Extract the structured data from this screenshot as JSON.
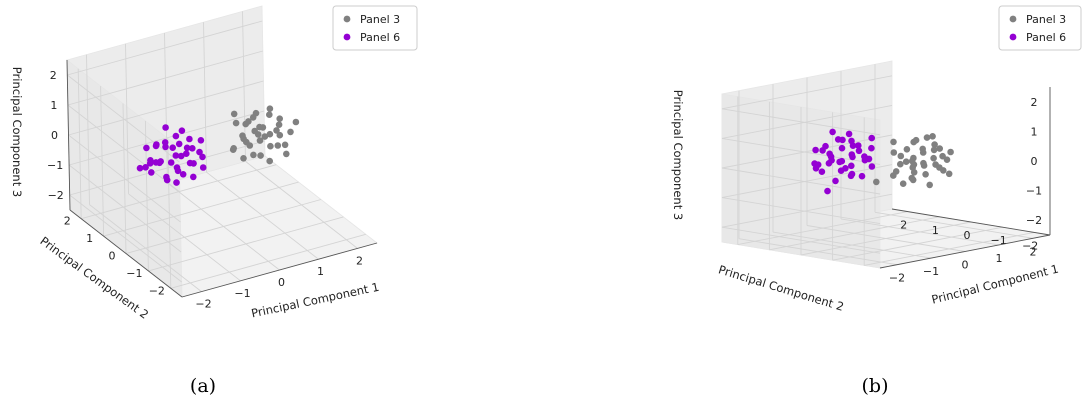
{
  "chart_data": [
    {
      "type": "scatter",
      "caption": "(a)",
      "xlabel": "Principal Component 1",
      "ylabel": "Principal Component 2",
      "zlabel": "Principal Component 3",
      "xticks": [
        "−2",
        "−1",
        "0",
        "1",
        "2"
      ],
      "yticks": [
        "−2",
        "−1",
        "0",
        "1",
        "2"
      ],
      "zticks": [
        "−2",
        "−1",
        "0",
        "1",
        "2"
      ],
      "xlim": [
        -2.5,
        2.5
      ],
      "ylim": [
        -2.5,
        2.5
      ],
      "zlim": [
        -2.5,
        2.5
      ],
      "legend_position": "top-right",
      "grid": true,
      "series": [
        {
          "name": "Panel 3",
          "color": "#808080",
          "points": [
            [
              0.6,
              -0.2,
              0.1
            ],
            [
              0.9,
              0.1,
              0.3
            ],
            [
              1.2,
              -0.4,
              0.0
            ],
            [
              0.4,
              0.2,
              -0.2
            ],
            [
              1.0,
              -0.1,
              0.5
            ],
            [
              1.4,
              0.0,
              0.2
            ],
            [
              0.7,
              -0.5,
              -0.1
            ],
            [
              1.1,
              0.3,
              0.0
            ],
            [
              0.8,
              0.0,
              -0.4
            ],
            [
              1.3,
              -0.3,
              0.6
            ],
            [
              0.5,
              -0.1,
              0.3
            ],
            [
              1.6,
              0.2,
              0.4
            ],
            [
              0.9,
              -0.6,
              0.2
            ],
            [
              1.2,
              0.4,
              -0.3
            ],
            [
              0.3,
              0.0,
              0.0
            ],
            [
              1.0,
              0.2,
              0.8
            ],
            [
              0.6,
              0.4,
              0.5
            ],
            [
              1.5,
              -0.2,
              -0.2
            ],
            [
              0.8,
              -0.3,
              0.7
            ],
            [
              1.1,
              -0.2,
              -0.6
            ],
            [
              0.7,
              0.3,
              0.1
            ],
            [
              1.3,
              0.1,
              0.9
            ],
            [
              0.4,
              -0.4,
              0.4
            ],
            [
              1.7,
              -0.1,
              0.1
            ],
            [
              0.9,
              0.5,
              0.3
            ],
            [
              1.2,
              -0.5,
              0.4
            ],
            [
              0.6,
              0.1,
              -0.5
            ],
            [
              1.0,
              -0.4,
              1.1
            ],
            [
              1.4,
              0.3,
              -0.1
            ],
            [
              0.8,
              0.2,
              0.6
            ],
            [
              1.9,
              0.0,
              0.3
            ],
            [
              0.5,
              0.3,
              0.9
            ],
            [
              1.1,
              0.0,
              0.1
            ],
            [
              1.3,
              -0.6,
              -0.2
            ],
            [
              0.7,
              -0.2,
              1.0
            ]
          ]
        },
        {
          "name": "Panel 6",
          "color": "#9400D3",
          "points": [
            [
              -0.8,
              0.2,
              0.1
            ],
            [
              -1.1,
              -0.1,
              0.3
            ],
            [
              -1.4,
              0.3,
              0.0
            ],
            [
              -0.6,
              -0.2,
              -0.2
            ],
            [
              -1.2,
              0.1,
              0.5
            ],
            [
              -1.6,
              0.0,
              0.2
            ],
            [
              -0.9,
              0.5,
              -0.1
            ],
            [
              -1.3,
              -0.3,
              0.0
            ],
            [
              -1.0,
              0.0,
              -0.4
            ],
            [
              -1.5,
              0.3,
              0.6
            ],
            [
              -0.7,
              0.1,
              0.3
            ],
            [
              -1.8,
              -0.2,
              0.4
            ],
            [
              -1.1,
              0.6,
              0.2
            ],
            [
              -1.4,
              -0.4,
              -0.3
            ],
            [
              -0.5,
              0.0,
              0.0
            ],
            [
              -1.2,
              -0.2,
              0.8
            ],
            [
              -0.8,
              -0.4,
              0.5
            ],
            [
              -1.7,
              0.2,
              -0.2
            ],
            [
              -1.0,
              0.3,
              0.7
            ],
            [
              -1.3,
              0.2,
              -0.6
            ],
            [
              -0.9,
              -0.3,
              0.1
            ],
            [
              -1.5,
              -0.1,
              0.9
            ],
            [
              -0.6,
              0.4,
              0.4
            ],
            [
              -1.9,
              0.1,
              0.1
            ],
            [
              -1.1,
              -0.5,
              0.3
            ],
            [
              -1.4,
              0.5,
              0.4
            ],
            [
              -0.8,
              -0.1,
              -0.5
            ],
            [
              -1.2,
              0.4,
              1.0
            ],
            [
              -1.6,
              -0.3,
              -0.1
            ],
            [
              -1.0,
              -0.2,
              0.6
            ],
            [
              -2.1,
              0.0,
              0.2
            ],
            [
              -0.7,
              -0.3,
              0.8
            ],
            [
              -1.3,
              0.0,
              0.1
            ],
            [
              -1.5,
              0.6,
              -0.2
            ],
            [
              -0.9,
              0.2,
              0.9
            ],
            [
              -1.1,
              0.1,
              -0.2
            ],
            [
              -1.7,
              0.4,
              0.5
            ],
            [
              -2.0,
              -0.3,
              0.6
            ]
          ]
        }
      ]
    },
    {
      "type": "scatter",
      "caption": "(b)",
      "xlabel": "Principal Component 1",
      "ylabel": "Principal Component 2",
      "zlabel": "Principal Component 3",
      "xticks": [
        "−2",
        "−1",
        "0",
        "1",
        "2"
      ],
      "yticks": [
        "−2",
        "−1",
        "0",
        "1",
        "2"
      ],
      "zticks": [
        "−2",
        "−1",
        "0",
        "1",
        "2"
      ],
      "xlim": [
        -2.5,
        2.5
      ],
      "ylim": [
        -2.5,
        2.5
      ],
      "zlim": [
        -2.5,
        2.5
      ],
      "legend_position": "top-right",
      "grid": true,
      "series": [
        {
          "name": "Panel 3",
          "color": "#808080",
          "points": [
            [
              0.6,
              -0.2,
              -0.2
            ],
            [
              0.9,
              0.1,
              0.0
            ],
            [
              1.2,
              -0.4,
              -0.3
            ],
            [
              0.4,
              0.2,
              -0.5
            ],
            [
              1.0,
              -0.1,
              0.2
            ],
            [
              1.4,
              0.0,
              -0.1
            ],
            [
              0.7,
              -0.5,
              -0.4
            ],
            [
              1.1,
              0.3,
              -0.3
            ],
            [
              0.8,
              0.0,
              -0.7
            ],
            [
              1.3,
              -0.3,
              0.3
            ],
            [
              0.5,
              -0.1,
              0.0
            ],
            [
              1.6,
              0.2,
              0.1
            ],
            [
              0.9,
              -0.6,
              -0.1
            ],
            [
              1.2,
              0.4,
              -0.6
            ],
            [
              0.3,
              0.0,
              -0.3
            ],
            [
              1.0,
              0.2,
              0.5
            ],
            [
              0.6,
              0.4,
              0.2
            ],
            [
              1.5,
              -0.2,
              -0.5
            ],
            [
              0.8,
              -0.3,
              0.4
            ],
            [
              1.1,
              -0.2,
              -0.9
            ],
            [
              0.7,
              0.3,
              -0.2
            ],
            [
              1.3,
              0.1,
              0.6
            ],
            [
              0.4,
              -0.4,
              0.1
            ],
            [
              1.7,
              -0.1,
              -0.2
            ],
            [
              0.9,
              0.5,
              0.0
            ],
            [
              1.2,
              -0.5,
              0.1
            ],
            [
              0.6,
              0.1,
              -0.8
            ],
            [
              1.0,
              -0.4,
              0.8
            ],
            [
              1.4,
              0.3,
              -0.4
            ],
            [
              0.8,
              0.2,
              0.3
            ],
            [
              1.9,
              0.0,
              0.0
            ],
            [
              0.5,
              0.3,
              0.6
            ],
            [
              1.1,
              0.0,
              -0.2
            ],
            [
              1.3,
              -0.6,
              -0.5
            ],
            [
              0.7,
              -0.2,
              0.7
            ],
            [
              0.2,
              -0.6,
              -0.4
            ],
            [
              -0.1,
              0.2,
              -0.6
            ],
            [
              1.8,
              0.4,
              0.2
            ]
          ]
        },
        {
          "name": "Panel 6",
          "color": "#9400D3",
          "points": [
            [
              -0.8,
              0.2,
              0.4
            ],
            [
              -1.1,
              -0.1,
              0.6
            ],
            [
              -1.4,
              0.3,
              0.3
            ],
            [
              -0.6,
              -0.2,
              0.1
            ],
            [
              -1.2,
              0.1,
              0.8
            ],
            [
              -1.6,
              0.0,
              0.5
            ],
            [
              -0.9,
              0.5,
              0.2
            ],
            [
              -1.3,
              -0.3,
              0.3
            ],
            [
              -1.0,
              0.0,
              -0.1
            ],
            [
              -1.5,
              0.3,
              0.9
            ],
            [
              -0.7,
              0.1,
              0.6
            ],
            [
              -1.8,
              -0.2,
              0.7
            ],
            [
              -1.1,
              0.6,
              0.5
            ],
            [
              -1.4,
              -0.4,
              0.0
            ],
            [
              -0.5,
              0.0,
              0.3
            ],
            [
              -1.2,
              -0.2,
              1.1
            ],
            [
              -0.8,
              -0.4,
              0.8
            ],
            [
              -1.7,
              0.2,
              0.1
            ],
            [
              -1.0,
              0.3,
              1.0
            ],
            [
              -1.3,
              0.2,
              -0.3
            ],
            [
              -0.9,
              -0.3,
              0.4
            ],
            [
              -1.5,
              -0.1,
              1.2
            ],
            [
              -0.6,
              0.4,
              0.7
            ],
            [
              -1.9,
              0.1,
              0.4
            ],
            [
              -1.1,
              -0.5,
              0.6
            ],
            [
              -1.4,
              0.5,
              0.7
            ],
            [
              -0.8,
              -0.1,
              -0.2
            ],
            [
              -1.2,
              0.4,
              1.3
            ],
            [
              -1.6,
              -0.3,
              0.2
            ],
            [
              -1.0,
              -0.2,
              0.9
            ],
            [
              -2.1,
              0.0,
              0.5
            ],
            [
              -0.7,
              -0.3,
              1.1
            ],
            [
              -1.3,
              0.0,
              0.4
            ],
            [
              -1.5,
              0.6,
              0.1
            ],
            [
              -0.9,
              0.2,
              1.2
            ],
            [
              -1.1,
              0.1,
              0.1
            ],
            [
              -1.7,
              0.4,
              0.8
            ],
            [
              -2.0,
              -0.3,
              -0.4
            ]
          ]
        }
      ]
    }
  ]
}
